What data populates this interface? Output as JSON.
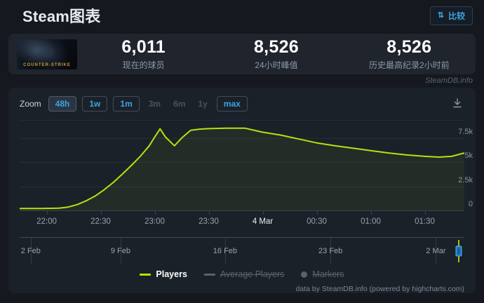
{
  "header": {
    "title": "Steam图表",
    "compare_label": "比较",
    "compare_icon_glyph": "⇅"
  },
  "stats": {
    "game_logo_text": "COUNTER-STRIKE",
    "items": [
      {
        "value": "6,011",
        "label": "现在的球员"
      },
      {
        "value": "8,526",
        "label": "24小时峰值"
      },
      {
        "value": "8,526",
        "label": "历史最高纪录2小时前"
      }
    ]
  },
  "watermark": "SteamDB.info",
  "toolbar": {
    "zoom_label": "Zoom",
    "buttons": [
      {
        "label": "48h",
        "state": "active"
      },
      {
        "label": "1w",
        "state": "enabled"
      },
      {
        "label": "1m",
        "state": "enabled"
      },
      {
        "label": "3m",
        "state": "disabled"
      },
      {
        "label": "6m",
        "state": "disabled"
      },
      {
        "label": "1y",
        "state": "disabled"
      },
      {
        "label": "max",
        "state": "enabled"
      }
    ]
  },
  "colors": {
    "accent_blue": "#3da2e0",
    "line_green": "#b9e00e",
    "grid": "#262e39",
    "axis": "#39424e"
  },
  "chart_data": {
    "type": "line",
    "title": "",
    "xlabel": "",
    "ylabel": "",
    "xlim": [
      0,
      247
    ],
    "ylim": [
      0,
      9300
    ],
    "grid": true,
    "legend_position": "bottom-center",
    "series": [
      {
        "name": "Players",
        "color": "#b9e00e",
        "points": [
          [
            0,
            200
          ],
          [
            12,
            200
          ],
          [
            22,
            230
          ],
          [
            27,
            350
          ],
          [
            32,
            600
          ],
          [
            37,
            1000
          ],
          [
            42,
            1500
          ],
          [
            47,
            2150
          ],
          [
            52,
            2900
          ],
          [
            57,
            3750
          ],
          [
            62,
            4650
          ],
          [
            67,
            5600
          ],
          [
            72,
            6700
          ],
          [
            75,
            7600
          ],
          [
            78,
            8450
          ],
          [
            81,
            7600
          ],
          [
            86,
            6700
          ],
          [
            90,
            7500
          ],
          [
            95,
            8300
          ],
          [
            100,
            8420
          ],
          [
            105,
            8470
          ],
          [
            115,
            8520
          ],
          [
            125,
            8526
          ],
          [
            135,
            8100
          ],
          [
            145,
            7800
          ],
          [
            155,
            7400
          ],
          [
            165,
            7000
          ],
          [
            175,
            6700
          ],
          [
            185,
            6450
          ],
          [
            195,
            6200
          ],
          [
            205,
            5950
          ],
          [
            215,
            5750
          ],
          [
            225,
            5600
          ],
          [
            233,
            5520
          ],
          [
            240,
            5600
          ],
          [
            247,
            5950
          ]
        ]
      }
    ],
    "x_ticks": [
      {
        "pos": 15,
        "label": "22:00",
        "emph": false
      },
      {
        "pos": 45,
        "label": "22:30",
        "emph": false
      },
      {
        "pos": 75,
        "label": "23:00",
        "emph": false
      },
      {
        "pos": 105,
        "label": "23:30",
        "emph": false
      },
      {
        "pos": 135,
        "label": "4 Mar",
        "emph": true
      },
      {
        "pos": 165,
        "label": "00:30",
        "emph": false
      },
      {
        "pos": 195,
        "label": "01:00",
        "emph": false
      },
      {
        "pos": 225,
        "label": "01:30",
        "emph": false
      }
    ],
    "y_ticks": [
      {
        "v": 0,
        "label": "0"
      },
      {
        "v": 2500,
        "label": "2.5k"
      },
      {
        "v": 5000,
        "label": "5k"
      },
      {
        "v": 7500,
        "label": "7.5k"
      }
    ],
    "navigator": {
      "labels": [
        {
          "label": "2 Feb",
          "pos": 0.025
        },
        {
          "label": "9 Feb",
          "pos": 0.227
        },
        {
          "label": "16 Feb",
          "pos": 0.462
        },
        {
          "label": "23 Feb",
          "pos": 0.699
        },
        {
          "label": "2 Mar",
          "pos": 0.936
        }
      ],
      "handle_pos": 0.987
    },
    "legend": [
      {
        "label": "Players",
        "marker": "line",
        "color": "#b9e00e",
        "enabled": true
      },
      {
        "label": "Average Players",
        "marker": "line",
        "color": "#59636e",
        "enabled": false
      },
      {
        "label": "Markers",
        "marker": "circle",
        "color": "#59636e",
        "enabled": false
      }
    ]
  },
  "credits": "data by SteamDB.info (powered by highcharts.com)"
}
